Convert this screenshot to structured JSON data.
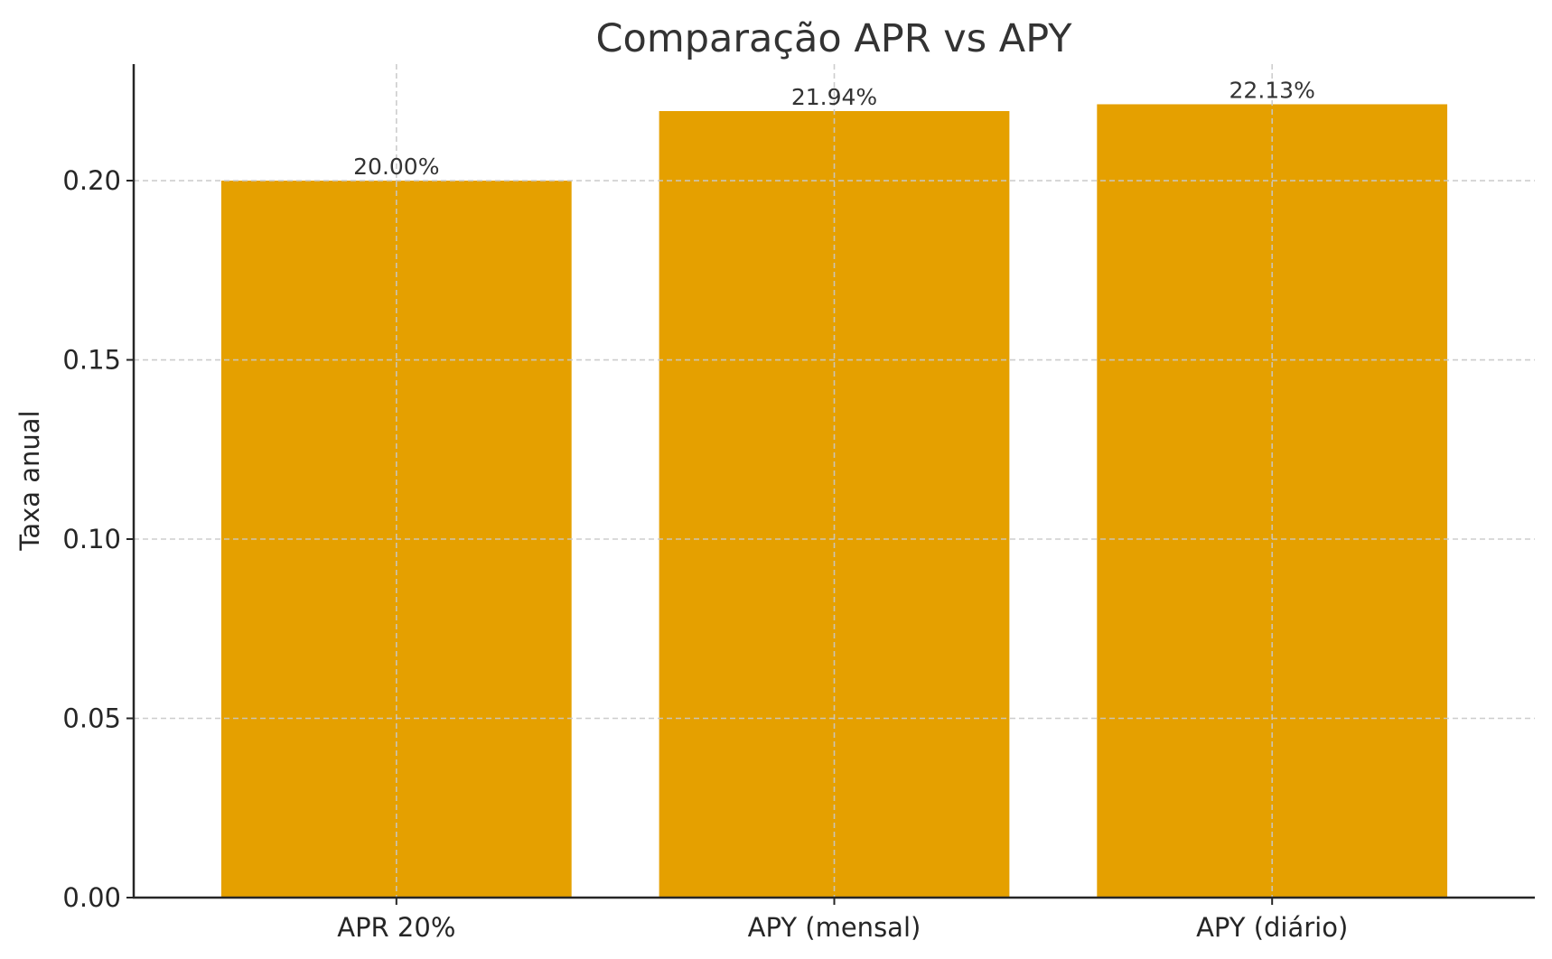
{
  "chart_data": {
    "type": "bar",
    "title": "Comparação APR vs APY",
    "xlabel": "",
    "ylabel": "Taxa anual",
    "categories": [
      "APR 20%",
      "APY (mensal)",
      "APY (diário)"
    ],
    "values": [
      0.2,
      0.2194,
      0.2213
    ],
    "value_labels": [
      "20.00%",
      "21.94%",
      "22.13%"
    ],
    "ylim": [
      0,
      0.2325
    ],
    "yticks": [
      0.0,
      0.05,
      0.1,
      0.15,
      0.2
    ],
    "ytick_labels": [
      "0.00",
      "0.05",
      "0.10",
      "0.15",
      "0.20"
    ],
    "grid": true,
    "grid_style": "dashed",
    "legend": null,
    "bar_color": "#E5A000"
  },
  "colors": {
    "bar": "#E5A000",
    "grid": "#C8C8C8",
    "axis": "#262626",
    "text": "#262626",
    "value_label": "#333333"
  }
}
